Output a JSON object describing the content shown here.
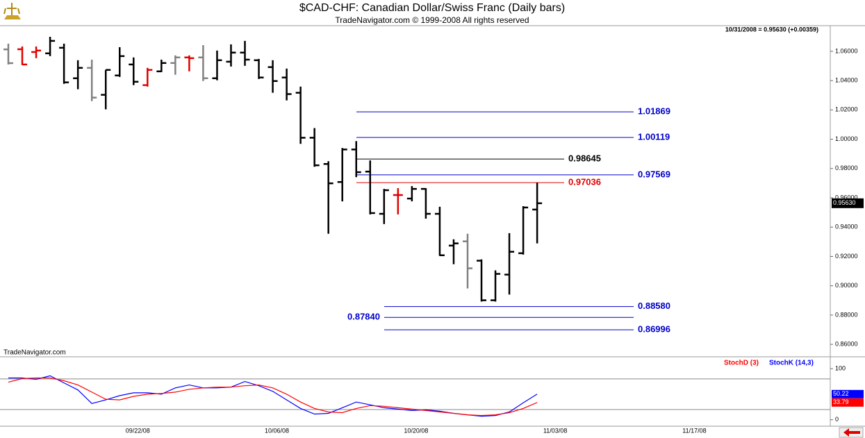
{
  "chart_data": [
    {
      "type": "ohlc",
      "title": "$CAD-CHF:  Canadian Dollar/Swiss Franc  (Daily bars)",
      "subtitle": "TradeNavigator.com © 1999-2008 All rights reserved",
      "header": "10/31/2008 = 0.95630 (+0.00359)",
      "watermark": "TradeNavigator.com",
      "ylim": [
        0.852,
        1.077
      ],
      "yticks": [
        {
          "value": 0.86,
          "label": "0.86000"
        },
        {
          "value": 0.88,
          "label": "0.88000"
        },
        {
          "value": 0.9,
          "label": "0.90000"
        },
        {
          "value": 0.92,
          "label": "0.92000"
        },
        {
          "value": 0.94,
          "label": "0.94000"
        },
        {
          "value": 0.96,
          "label": "0.96000"
        },
        {
          "value": 0.98,
          "label": "0.98000"
        },
        {
          "value": 1.0,
          "label": "1.00000"
        },
        {
          "value": 1.02,
          "label": "1.02000"
        },
        {
          "value": 1.04,
          "label": "1.04000"
        },
        {
          "value": 1.06,
          "label": "1.06000"
        }
      ],
      "open": [
        1.0613,
        1.0614,
        1.0595,
        1.0586,
        1.0624,
        1.0416,
        1.0487,
        1.0303,
        1.0435,
        1.051,
        1.0369,
        1.0463,
        1.052,
        1.0558,
        1.0558,
        1.0416,
        1.0529,
        1.0591,
        1.0539,
        1.0492,
        1.0421,
        1.0317,
        1.001,
        0.9831,
        0.9708,
        0.993,
        0.9779,
        0.9491,
        0.9619,
        0.9595,
        0.9661,
        0.9491,
        0.9274,
        0.9303,
        0.9171,
        0.8901,
        0.9076,
        0.9222,
        0.952
      ],
      "high": [
        1.0652,
        1.0633,
        1.0633,
        1.0699,
        1.0652,
        1.0539,
        1.0543,
        1.0473,
        1.0628,
        1.0558,
        1.0487,
        1.0543,
        1.0572,
        1.0572,
        1.0642,
        1.0605,
        1.0647,
        1.0671,
        1.0548,
        1.0539,
        1.0482,
        1.0359,
        1.0076,
        0.985,
        0.994,
        0.9987,
        0.9855,
        0.9661,
        0.9666,
        0.968,
        0.9666,
        0.9539,
        0.9317,
        0.9355,
        0.918,
        0.9105,
        0.9359,
        0.9543,
        0.9703
      ],
      "low": [
        1.051,
        1.0506,
        1.0553,
        1.0567,
        1.0378,
        1.0341,
        1.026,
        1.0204,
        1.0425,
        1.0369,
        1.0359,
        1.0458,
        1.044,
        1.0463,
        1.0397,
        1.0402,
        1.0496,
        1.0501,
        1.0411,
        1.0317,
        1.0265,
        0.9968,
        0.9812,
        0.9355,
        0.9576,
        0.9741,
        0.9487,
        0.9421,
        0.9487,
        0.9576,
        0.9458,
        0.9204,
        0.9147,
        0.8982,
        0.8892,
        0.8892,
        0.894,
        0.9213,
        0.9289
      ],
      "close": [
        1.0519,
        1.051,
        1.0605,
        1.0671,
        1.0388,
        1.0487,
        1.0284,
        1.0473,
        1.0567,
        1.0392,
        1.0473,
        1.052,
        1.0558,
        1.0553,
        1.0416,
        1.0539,
        1.0591,
        1.0543,
        1.0421,
        1.0397,
        1.0308,
        1.001,
        0.9822,
        0.9699,
        0.993,
        0.9775,
        0.9496,
        0.9652,
        0.9619,
        0.9661,
        0.9491,
        0.9208,
        0.9289,
        0.9119,
        0.8901,
        0.9081,
        0.9232,
        0.9534,
        0.9563
      ],
      "colors": [
        "#808080",
        "#e00000",
        "#e00000",
        "#000000",
        "#000000",
        "#000000",
        "#808080",
        "#000000",
        "#000000",
        "#000000",
        "#e00000",
        "#000000",
        "#808080",
        "#e00000",
        "#808080",
        "#000000",
        "#000000",
        "#000000",
        "#000000",
        "#000000",
        "#000000",
        "#000000",
        "#000000",
        "#000000",
        "#000000",
        "#000000",
        "#000000",
        "#000000",
        "#e00000",
        "#000000",
        "#000000",
        "#000000",
        "#000000",
        "#808080",
        "#000000",
        "#000000",
        "#000000",
        "#000000",
        "#000000"
      ],
      "last_price": {
        "value": 0.9563,
        "label": "0.95630"
      },
      "levels": [
        {
          "value": 1.01869,
          "color": "#0000c8"
        },
        {
          "value": 1.00119,
          "color": "#0000c8"
        },
        {
          "value": 0.98645,
          "color": "#000000"
        },
        {
          "value": 0.97569,
          "color": "#0000c8"
        },
        {
          "value": 0.97036,
          "color": "#e00000"
        },
        {
          "value": 0.8858,
          "value_label": "0.88580",
          "color": "#0000c8"
        },
        {
          "value": 0.8784,
          "value_label": "0.87840",
          "color": "#0000c8"
        },
        {
          "value": 0.86996,
          "color": "#0000c8"
        }
      ]
    },
    {
      "type": "line",
      "categories": [
        null,
        null,
        null,
        null,
        null,
        null,
        null,
        null,
        null,
        "09/22/08",
        null,
        null,
        null,
        null,
        null,
        null,
        null,
        null,
        null,
        "10/06/08",
        null,
        null,
        null,
        null,
        null,
        null,
        null,
        null,
        null,
        "10/20/08",
        null,
        null,
        null,
        null,
        null,
        null,
        null,
        null,
        null,
        "11/03/08",
        null,
        null,
        null,
        null,
        null,
        null,
        null,
        null,
        null,
        "11/17/08",
        null,
        null,
        null,
        null,
        null,
        null,
        null,
        null,
        null,
        null
      ],
      "ylim": [
        -14,
        122
      ],
      "yticks": [
        0,
        100
      ],
      "hlines": [
        80,
        20
      ],
      "series": [
        {
          "name": "StochK (14,3)",
          "color": "#0000ff",
          "values": [
            81.9,
            81.9,
            79.2,
            86.1,
            72.2,
            58.3,
            31.9,
            38.9,
            47.2,
            52.8,
            52.8,
            50.0,
            62.5,
            68.1,
            62.5,
            62.5,
            63.9,
            75.0,
            66.7,
            55.6,
            38.9,
            22.2,
            11.1,
            12.5,
            23.6,
            34.7,
            29.2,
            23.6,
            20.8,
            18.1,
            19.4,
            16.7,
            12.5,
            9.7,
            6.9,
            8.3,
            15.3,
            33.3,
            50.22,
            null,
            null,
            null,
            null,
            null,
            null,
            null,
            null,
            null,
            null,
            null,
            null,
            null,
            null,
            null,
            null,
            null,
            null,
            null,
            null,
            null
          ]
        },
        {
          "name": "StochD (3)",
          "color": "#ff0000",
          "values": [
            73.6,
            80.6,
            81.9,
            81.9,
            76.4,
            68.1,
            54.2,
            40.3,
            38.9,
            45.8,
            50.0,
            51.4,
            54.2,
            59.7,
            62.5,
            63.9,
            63.9,
            66.7,
            68.1,
            62.5,
            50.0,
            34.7,
            22.2,
            15.3,
            13.9,
            22.2,
            27.8,
            26.4,
            23.6,
            20.8,
            18.1,
            15.3,
            12.5,
            9.7,
            8.3,
            9.7,
            13.9,
            22.2,
            33.79,
            null,
            null,
            null,
            null,
            null,
            null,
            null,
            null,
            null,
            null,
            null,
            null,
            null,
            null,
            null,
            null,
            null,
            null,
            null,
            null,
            null
          ]
        }
      ]
    }
  ]
}
